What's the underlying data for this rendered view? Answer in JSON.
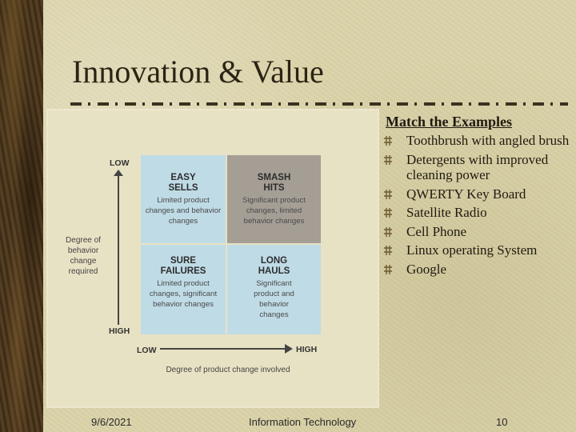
{
  "slide": {
    "title": "Innovation & Value",
    "footer": {
      "date": "9/6/2021",
      "center": "Information Technology",
      "page": "10"
    }
  },
  "figure": {
    "y_axis": {
      "top_label": "LOW",
      "bottom_label": "HIGH",
      "caption": "Degree of behavior change required"
    },
    "x_axis": {
      "left_label": "LOW",
      "right_label": "HIGH",
      "caption": "Degree of product change involved"
    },
    "quadrants": [
      {
        "title": "EASY SELLS",
        "description": "Limited product changes and behavior changes",
        "color": "#bfdbe6"
      },
      {
        "title": "SMASH HITS",
        "description": "Significant product changes, limited behavior changes",
        "color": "#a49e95"
      },
      {
        "title": "SURE FAILURES",
        "description": "Limited product changes, significant behavior changes",
        "color": "#bfdbe6"
      },
      {
        "title": "LONG HAULS",
        "description": "Significant product and behavior changes",
        "color": "#bfdbe6"
      }
    ]
  },
  "examples": {
    "heading": "Match the Examples",
    "items": [
      "Toothbrush with angled brush",
      "Detergents with improved cleaning power",
      "QWERTY Key Board",
      "Satellite Radio",
      "Cell Phone",
      "Linux operating System",
      "Google"
    ],
    "bullet_icon": "fence-bullet-icon"
  }
}
